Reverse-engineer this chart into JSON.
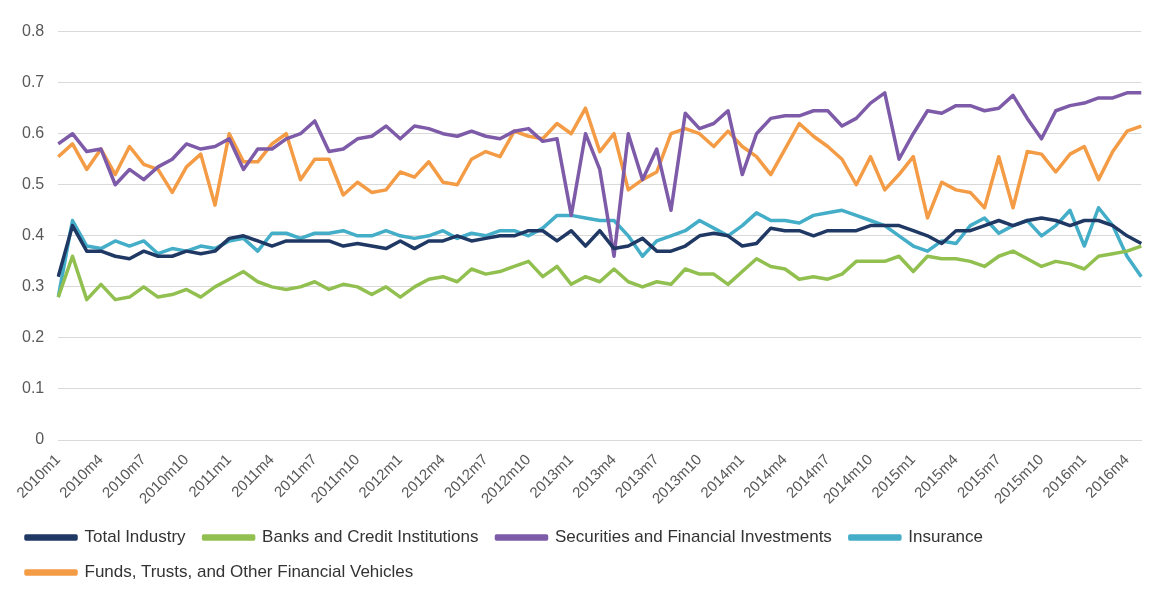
{
  "chart_data": {
    "type": "line",
    "categories": [
      "2010m1",
      null,
      null,
      "2010m4",
      null,
      null,
      "2010m7",
      null,
      null,
      "2010m10",
      null,
      null,
      "2011m1",
      null,
      null,
      "2011m4",
      null,
      null,
      "2011m7",
      null,
      null,
      "2011m10",
      null,
      null,
      "2012m1",
      null,
      null,
      "2012m4",
      null,
      null,
      "2012m7",
      null,
      null,
      "2012m10",
      null,
      null,
      "2013m1",
      null,
      null,
      "2013m4",
      null,
      null,
      "2013m7",
      null,
      null,
      "2013m10",
      null,
      null,
      "2014m1",
      null,
      null,
      "2014m4",
      null,
      null,
      "2014m7",
      null,
      null,
      "2014m10",
      null,
      null,
      "2015m1",
      null,
      null,
      "2015m4",
      null,
      null,
      "2015m7",
      null,
      null,
      "2015m10",
      null,
      null,
      "2016m1",
      null,
      null,
      "2016m4",
      null
    ],
    "series": [
      {
        "name": "Total Industry",
        "color": "#203864",
        "values": [
          0.32,
          0.42,
          0.37,
          0.37,
          0.36,
          0.355,
          0.37,
          0.36,
          0.36,
          0.37,
          0.365,
          0.37,
          0.395,
          0.4,
          0.39,
          0.38,
          0.39,
          0.39,
          0.39,
          0.39,
          0.38,
          0.385,
          0.38,
          0.375,
          0.39,
          0.375,
          0.39,
          0.39,
          0.4,
          0.39,
          0.395,
          0.4,
          0.4,
          0.41,
          0.41,
          0.39,
          0.41,
          0.38,
          0.41,
          0.375,
          0.38,
          0.395,
          0.37,
          0.37,
          0.38,
          0.4,
          0.405,
          0.4,
          0.38,
          0.385,
          0.415,
          0.41,
          0.41,
          0.4,
          0.41,
          0.41,
          0.41,
          0.42,
          0.42,
          0.42,
          0.41,
          0.4,
          0.385,
          0.41,
          0.41,
          0.42,
          0.43,
          0.42,
          0.43,
          0.435,
          0.43,
          0.42,
          0.43,
          0.43,
          0.42,
          0.4,
          0.385
        ]
      },
      {
        "name": "Banks and Credit Institutions",
        "color": "#92c050",
        "values": [
          0.28,
          0.36,
          0.275,
          0.305,
          0.275,
          0.28,
          0.3,
          0.28,
          0.285,
          0.295,
          0.28,
          0.3,
          0.315,
          0.33,
          0.31,
          0.3,
          0.295,
          0.3,
          0.31,
          0.295,
          0.305,
          0.3,
          0.285,
          0.3,
          0.28,
          0.3,
          0.315,
          0.32,
          0.31,
          0.335,
          0.325,
          0.33,
          0.34,
          0.35,
          0.32,
          0.34,
          0.305,
          0.32,
          0.31,
          0.335,
          0.31,
          0.3,
          0.31,
          0.305,
          0.335,
          0.325,
          0.325,
          0.305,
          0.33,
          0.355,
          0.34,
          0.335,
          0.315,
          0.32,
          0.315,
          0.325,
          0.35,
          0.35,
          0.35,
          0.36,
          0.33,
          0.36,
          0.355,
          0.355,
          0.35,
          0.34,
          0.36,
          0.37,
          0.355,
          0.34,
          0.35,
          0.345,
          0.335,
          0.36,
          0.365,
          0.37,
          0.38
        ]
      },
      {
        "name": "Securities and Financial Investments",
        "color": "#7e5ba8",
        "values": [
          0.58,
          0.6,
          0.565,
          0.57,
          0.5,
          0.53,
          0.51,
          0.535,
          0.55,
          0.58,
          0.57,
          0.575,
          0.59,
          0.53,
          0.57,
          0.57,
          0.59,
          0.6,
          0.625,
          0.565,
          0.57,
          0.59,
          0.595,
          0.615,
          0.59,
          0.615,
          0.61,
          0.6,
          0.595,
          0.605,
          0.595,
          0.59,
          0.605,
          0.61,
          0.585,
          0.59,
          0.44,
          0.6,
          0.53,
          0.36,
          0.6,
          0.51,
          0.57,
          0.45,
          0.64,
          0.61,
          0.62,
          0.645,
          0.52,
          0.6,
          0.63,
          0.635,
          0.635,
          0.645,
          0.645,
          0.615,
          0.63,
          0.66,
          0.68,
          0.55,
          0.6,
          0.645,
          0.64,
          0.655,
          0.655,
          0.645,
          0.65,
          0.675,
          0.63,
          0.59,
          0.645,
          0.655,
          0.66,
          0.67,
          0.67,
          0.68,
          0.68
        ]
      },
      {
        "name": "Insurance",
        "color": "#44adc8",
        "values": [
          0.28,
          0.43,
          0.38,
          0.375,
          0.39,
          0.38,
          0.39,
          0.365,
          0.375,
          0.37,
          0.38,
          0.375,
          0.39,
          0.395,
          0.37,
          0.405,
          0.405,
          0.395,
          0.405,
          0.405,
          0.41,
          0.4,
          0.4,
          0.41,
          0.4,
          0.395,
          0.4,
          0.41,
          0.395,
          0.405,
          0.4,
          0.41,
          0.41,
          0.4,
          0.415,
          0.44,
          0.44,
          0.435,
          0.43,
          0.43,
          0.4,
          0.36,
          0.39,
          0.4,
          0.41,
          0.43,
          0.415,
          0.4,
          0.42,
          0.445,
          0.43,
          0.43,
          0.425,
          0.44,
          0.445,
          0.45,
          0.44,
          0.43,
          0.42,
          0.4,
          0.38,
          0.37,
          0.39,
          0.385,
          0.42,
          0.435,
          0.405,
          0.42,
          0.43,
          0.4,
          0.42,
          0.45,
          0.38,
          0.455,
          0.42,
          0.36,
          0.32
        ]
      },
      {
        "name": "Funds, Trusts, and Other Financial Vehicles",
        "color": "#f49b45",
        "values": [
          0.555,
          0.58,
          0.53,
          0.57,
          0.52,
          0.575,
          0.54,
          0.53,
          0.485,
          0.535,
          0.56,
          0.46,
          0.6,
          0.545,
          0.545,
          0.58,
          0.6,
          0.51,
          0.55,
          0.55,
          0.48,
          0.505,
          0.485,
          0.49,
          0.525,
          0.515,
          0.545,
          0.505,
          0.5,
          0.55,
          0.565,
          0.555,
          0.605,
          0.595,
          0.59,
          0.62,
          0.6,
          0.65,
          0.565,
          0.6,
          0.49,
          0.51,
          0.525,
          0.6,
          0.61,
          0.6,
          0.575,
          0.605,
          0.575,
          0.555,
          0.52,
          0.57,
          0.62,
          0.595,
          0.575,
          0.55,
          0.5,
          0.555,
          0.49,
          0.52,
          0.555,
          0.435,
          0.505,
          0.49,
          0.485,
          0.455,
          0.555,
          0.455,
          0.565,
          0.56,
          0.525,
          0.56,
          0.575,
          0.51,
          0.565,
          0.605,
          0.615
        ]
      }
    ],
    "ylim": [
      0,
      0.8
    ],
    "yticks": [
      0,
      0.1,
      0.2,
      0.3,
      0.4,
      0.5,
      0.6,
      0.7,
      0.8
    ],
    "grid": "y",
    "legend": "bottom",
    "marker": "none",
    "line_style": "solid"
  }
}
